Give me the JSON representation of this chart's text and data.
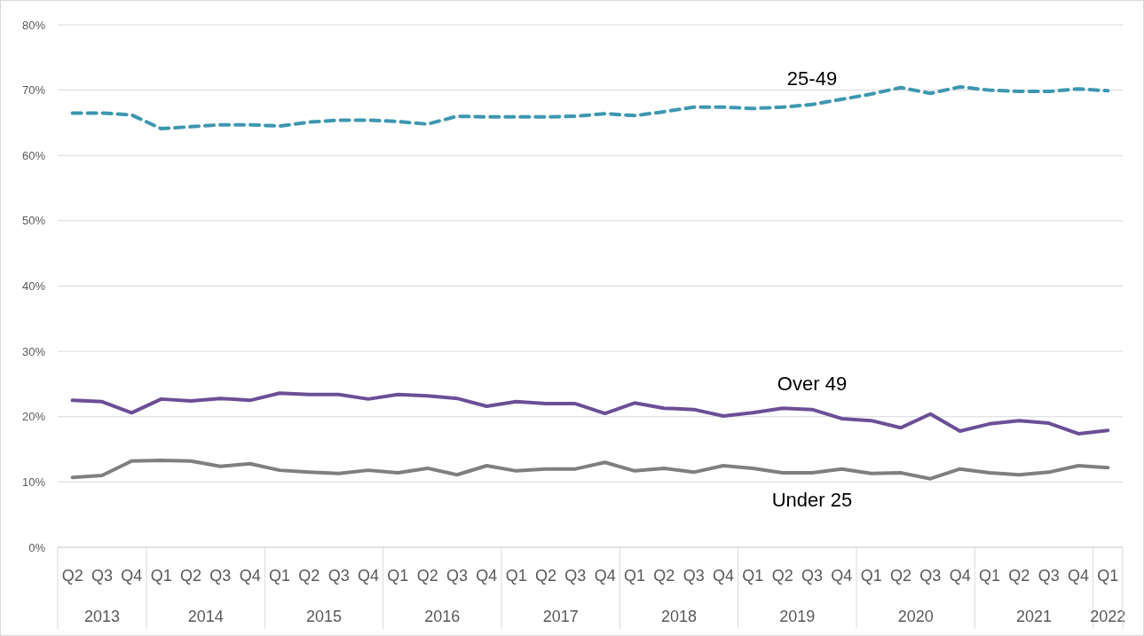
{
  "chart_data": {
    "type": "line",
    "categories": [
      "Q2",
      "Q3",
      "Q4",
      "Q1",
      "Q2",
      "Q3",
      "Q4",
      "Q1",
      "Q2",
      "Q3",
      "Q4",
      "Q1",
      "Q2",
      "Q3",
      "Q4",
      "Q1",
      "Q2",
      "Q3",
      "Q4",
      "Q1",
      "Q2",
      "Q3",
      "Q4",
      "Q1",
      "Q2",
      "Q3",
      "Q4",
      "Q1",
      "Q2",
      "Q3",
      "Q4",
      "Q1",
      "Q2",
      "Q3",
      "Q4",
      "Q1"
    ],
    "annotations": [
      "2013",
      "2014",
      "2015",
      "2016",
      "2017",
      "2018",
      "2019",
      "2020",
      "2021",
      "2022"
    ],
    "series": [
      {
        "name": "25-49",
        "color": "#3d97b0",
        "line_style": "dashed",
        "values": [
          66.5,
          66.5,
          66.2,
          64.1,
          64.4,
          64.7,
          64.7,
          64.5,
          65.1,
          65.4,
          65.4,
          65.2,
          64.8,
          66.0,
          65.9,
          65.9,
          65.9,
          66.0,
          66.4,
          66.1,
          66.7,
          67.4,
          67.4,
          67.2,
          67.4,
          67.8,
          68.6,
          69.4,
          70.4,
          69.5,
          70.5,
          70.0,
          69.8,
          69.8,
          70.2,
          69.9
        ]
      },
      {
        "name": "Over 49",
        "color": "#6b4f96",
        "line_style": "solid",
        "values": [
          22.5,
          22.3,
          20.6,
          22.7,
          22.4,
          22.8,
          22.5,
          23.6,
          23.4,
          23.4,
          22.7,
          23.4,
          23.2,
          22.8,
          21.6,
          22.3,
          22.0,
          22.0,
          20.5,
          22.1,
          21.3,
          21.1,
          20.1,
          20.6,
          21.3,
          21.1,
          19.7,
          19.4,
          18.3,
          20.4,
          17.8,
          18.9,
          19.4,
          19.0,
          17.4,
          17.9
        ]
      },
      {
        "name": "Under 25",
        "color": "#7f7f7f",
        "line_style": "solid",
        "values": [
          10.7,
          11.0,
          13.2,
          13.3,
          13.2,
          12.4,
          12.8,
          11.8,
          11.5,
          11.3,
          11.8,
          11.4,
          12.1,
          11.1,
          12.5,
          11.7,
          12.0,
          12.0,
          13.0,
          11.7,
          12.1,
          11.5,
          12.5,
          12.1,
          11.4,
          11.4,
          12.0,
          11.3,
          11.4,
          10.5,
          12.0,
          11.4,
          11.1,
          11.5,
          12.5,
          12.2
        ]
      }
    ],
    "ylim": [
      0,
      80
    ],
    "yticks": [
      {
        "value": 0,
        "label": "0%"
      },
      {
        "value": 10,
        "label": "10%"
      },
      {
        "value": 20,
        "label": "20%"
      },
      {
        "value": 30,
        "label": "30%"
      },
      {
        "value": 40,
        "label": "40%"
      },
      {
        "value": 50,
        "label": "50%"
      },
      {
        "value": 60,
        "label": "60%"
      },
      {
        "value": 70,
        "label": "70%"
      },
      {
        "value": 80,
        "label": "80%"
      }
    ],
    "grid": "y",
    "marker": "none"
  }
}
